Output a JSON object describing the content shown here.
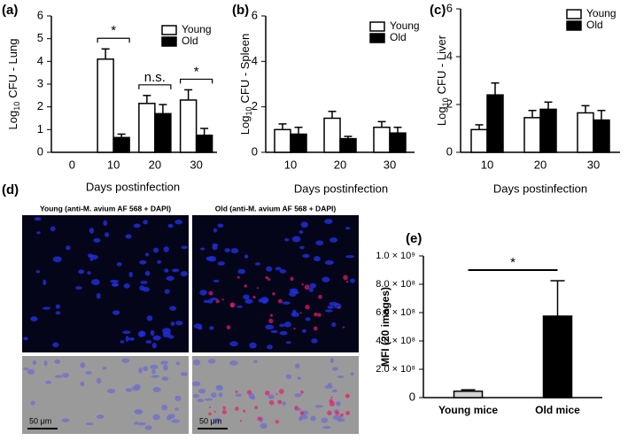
{
  "chart_data": [
    {
      "type": "bar",
      "panel": "(a)",
      "ylabel": {
        "text": "Log",
        "sub": "10",
        "rest": "CFU - Lung"
      },
      "xlabel": "Days postinfection",
      "categories": [
        "0",
        "10",
        "20",
        "30"
      ],
      "series": [
        {
          "name": "Young",
          "color": "#ffffff",
          "values": [
            null,
            4.1,
            2.15,
            2.3
          ],
          "errors": [
            null,
            0.45,
            0.35,
            0.45
          ]
        },
        {
          "name": "Old",
          "color": "#000000",
          "values": [
            null,
            0.65,
            1.7,
            0.75
          ],
          "errors": [
            null,
            0.15,
            0.4,
            0.3
          ]
        }
      ],
      "ylim": [
        0,
        6
      ],
      "yticks": [
        0,
        1,
        2,
        3,
        4,
        5,
        6
      ],
      "annotations": [
        "*",
        "n.s.",
        "*"
      ]
    },
    {
      "type": "bar",
      "panel": "(b)",
      "ylabel": {
        "text": "Log",
        "sub": "10",
        "rest": "CFU - Spleen"
      },
      "xlabel": "Days postinfection",
      "categories": [
        "10",
        "20",
        "30"
      ],
      "series": [
        {
          "name": "Young",
          "color": "#ffffff",
          "values": [
            1.0,
            1.5,
            1.1
          ],
          "errors": [
            0.25,
            0.3,
            0.25
          ]
        },
        {
          "name": "Old",
          "color": "#000000",
          "values": [
            0.8,
            0.6,
            0.85
          ],
          "errors": [
            0.3,
            0.1,
            0.25
          ]
        }
      ],
      "ylim": [
        0,
        6
      ],
      "yticks": [
        0,
        2,
        4,
        6
      ]
    },
    {
      "type": "bar",
      "panel": "(c)",
      "ylabel": {
        "text": "Log",
        "sub": "10",
        "rest": "CFU - Liver"
      },
      "xlabel": "Days postinfection",
      "categories": [
        "10",
        "20",
        "30"
      ],
      "series": [
        {
          "name": "Young",
          "color": "#ffffff",
          "values": [
            0.95,
            1.45,
            1.65
          ],
          "errors": [
            0.2,
            0.3,
            0.3
          ]
        },
        {
          "name": "Old",
          "color": "#000000",
          "values": [
            2.4,
            1.8,
            1.35
          ],
          "errors": [
            0.5,
            0.3,
            0.4
          ]
        }
      ],
      "ylim": [
        0,
        6
      ],
      "yticks": [
        0,
        2,
        4,
        6
      ]
    },
    {
      "type": "bar",
      "panel": "(e)",
      "ylabel": "MFI (20 images)",
      "categories": [
        "Young mice",
        "Old mice"
      ],
      "values": [
        45000000,
        575000000
      ],
      "errors": [
        10000000,
        250000000
      ],
      "colors": [
        "#d3d3d3",
        "#000000"
      ],
      "ylim": [
        0,
        1000000000
      ],
      "yticks": [
        0,
        {
          "value": 200000000,
          "label": "2.0 × 10⁸"
        },
        {
          "value": 400000000,
          "label": "4.0 × 10⁸"
        },
        {
          "value": 600000000,
          "label": "6.0 × 10⁸"
        },
        {
          "value": 800000000,
          "label": "8.0 × 10⁸"
        },
        {
          "value": 1000000000,
          "label": "1.0 × 10⁹"
        }
      ],
      "annotations": [
        "*"
      ]
    }
  ],
  "figure": {
    "label": "(d)",
    "titles": [
      "Young (anti-M. avium AF 568 + DAPI)",
      "Old (anti-M. avium AF 568 + DAPI)"
    ],
    "scale_bars": [
      "50 μm",
      "50 μm"
    ]
  }
}
